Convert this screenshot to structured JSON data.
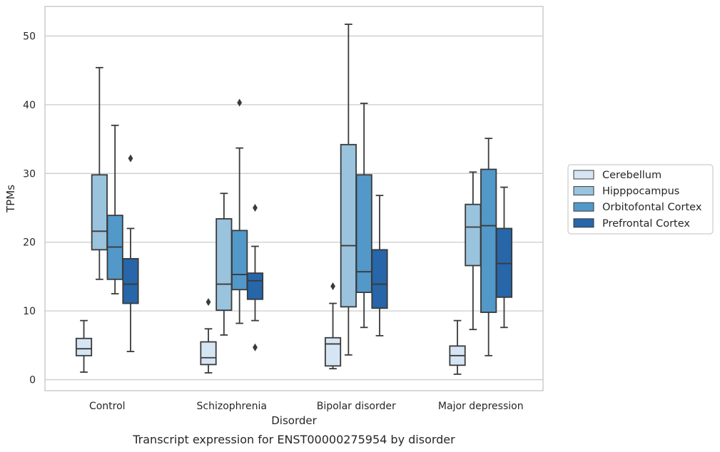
{
  "chart_data": {
    "type": "box",
    "title": "",
    "caption": "Transcript expression for ENST00000275954 by disorder",
    "xlabel": "Disorder",
    "ylabel": "TPMs",
    "ylim": [
      -1.6,
      54.3
    ],
    "yticks": [
      0,
      10,
      20,
      30,
      40,
      50
    ],
    "grid": "horizontal",
    "legend_position": "right",
    "categories": [
      "Control",
      "Schizophrenia",
      "Bipolar disorder",
      "Major depression"
    ],
    "series": [
      {
        "name": "Cerebellum",
        "color": "#d6e5f4",
        "boxes": [
          {
            "whisker_low": 1.1,
            "q1": 3.5,
            "median": 4.5,
            "q3": 6.0,
            "whisker_high": 8.6,
            "outliers": []
          },
          {
            "whisker_low": 1.0,
            "q1": 2.2,
            "median": 3.2,
            "q3": 5.5,
            "whisker_high": 7.4,
            "outliers": [
              11.3
            ]
          },
          {
            "whisker_low": 1.6,
            "q1": 2.0,
            "median": 5.2,
            "q3": 6.1,
            "whisker_high": 11.1,
            "outliers": [
              13.6
            ]
          },
          {
            "whisker_low": 0.8,
            "q1": 2.1,
            "median": 3.5,
            "q3": 4.9,
            "whisker_high": 8.6,
            "outliers": []
          }
        ]
      },
      {
        "name": "Hipppocampus",
        "color": "#9ac3dd",
        "boxes": [
          {
            "whisker_low": 14.6,
            "q1": 18.9,
            "median": 21.6,
            "q3": 29.8,
            "whisker_high": 45.4,
            "outliers": []
          },
          {
            "whisker_low": 6.5,
            "q1": 10.1,
            "median": 13.9,
            "q3": 23.4,
            "whisker_high": 27.1,
            "outliers": []
          },
          {
            "whisker_low": 3.6,
            "q1": 10.6,
            "median": 19.5,
            "q3": 34.2,
            "whisker_high": 51.7,
            "outliers": []
          },
          {
            "whisker_low": 7.3,
            "q1": 16.6,
            "median": 22.2,
            "q3": 25.5,
            "whisker_high": 30.2,
            "outliers": []
          }
        ]
      },
      {
        "name": "Orbitofontal Cortex",
        "color": "#5298c9",
        "boxes": [
          {
            "whisker_low": 12.5,
            "q1": 14.6,
            "median": 19.3,
            "q3": 23.9,
            "whisker_high": 37.0,
            "outliers": []
          },
          {
            "whisker_low": 8.2,
            "q1": 13.1,
            "median": 15.3,
            "q3": 21.7,
            "whisker_high": 33.7,
            "outliers": [
              40.3
            ]
          },
          {
            "whisker_low": 7.6,
            "q1": 12.7,
            "median": 15.7,
            "q3": 29.8,
            "whisker_high": 40.2,
            "outliers": []
          },
          {
            "whisker_low": 3.5,
            "q1": 9.8,
            "median": 22.4,
            "q3": 30.6,
            "whisker_high": 35.1,
            "outliers": []
          }
        ]
      },
      {
        "name": "Prefrontal Cortex",
        "color": "#2666a9",
        "boxes": [
          {
            "whisker_low": 4.1,
            "q1": 11.1,
            "median": 13.9,
            "q3": 17.6,
            "whisker_high": 22.0,
            "outliers": [
              32.2
            ]
          },
          {
            "whisker_low": 8.6,
            "q1": 11.7,
            "median": 14.4,
            "q3": 15.5,
            "whisker_high": 19.4,
            "outliers": [
              25.0,
              4.7
            ]
          },
          {
            "whisker_low": 6.4,
            "q1": 10.4,
            "median": 13.9,
            "q3": 18.9,
            "whisker_high": 26.8,
            "outliers": []
          },
          {
            "whisker_low": 7.6,
            "q1": 12.0,
            "median": 16.9,
            "q3": 22.0,
            "whisker_high": 28.0,
            "outliers": []
          }
        ]
      }
    ]
  }
}
